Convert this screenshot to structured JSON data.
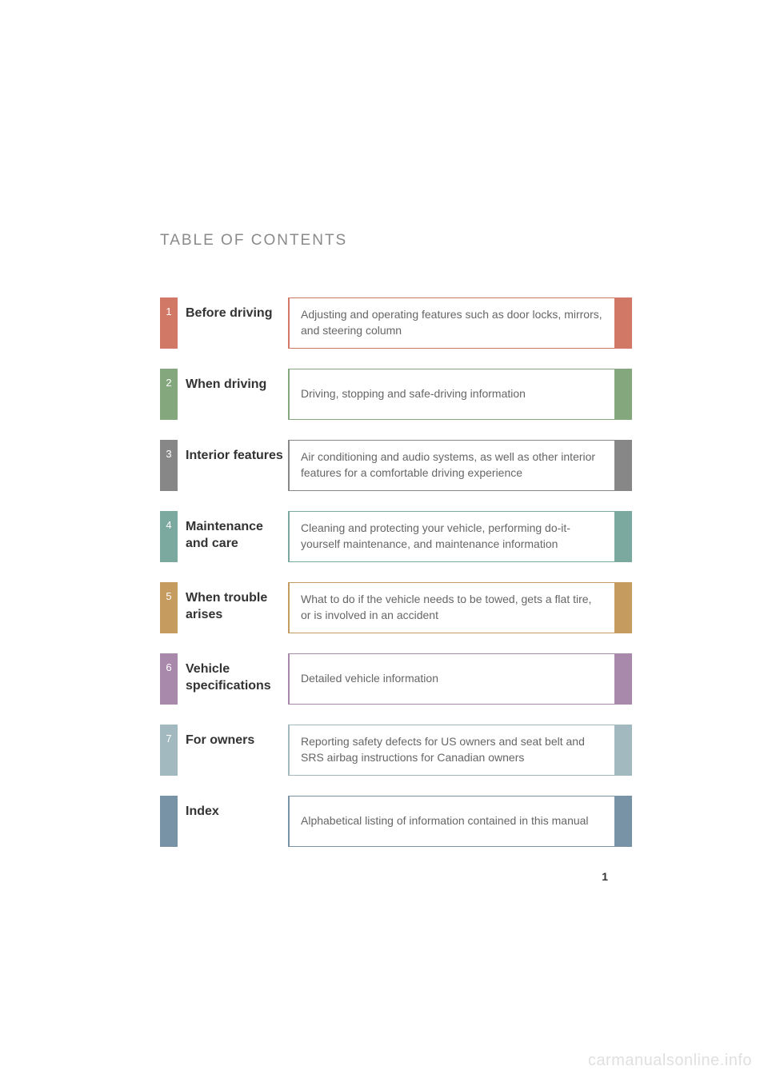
{
  "title": "TABLE OF CONTENTS",
  "page_number": "1",
  "watermark": "carmanualsonline.info",
  "colors": {
    "background": "#ffffff",
    "title_text": "#8a8a8a",
    "section_title_text": "#333333",
    "description_text": "#666666"
  },
  "sections": [
    {
      "number": "1",
      "title": "Before driving",
      "description": "Adjusting and operating features such as door locks, mirrors, and steering column",
      "color": "#d17867"
    },
    {
      "number": "2",
      "title": "When driving",
      "description": "Driving, stopping and safe-driving information",
      "color": "#85a77d"
    },
    {
      "number": "3",
      "title": "Interior features",
      "description": "Air conditioning and audio systems, as well as other interior features for a comfortable driving experience",
      "color": "#878787"
    },
    {
      "number": "4",
      "title": "Maintenance and care",
      "description": "Cleaning and protecting your vehicle, performing do-it-yourself maintenance, and maintenance information",
      "color": "#7ba99f"
    },
    {
      "number": "5",
      "title": "When trouble arises",
      "description": "What to do if the vehicle needs to be towed, gets a flat tire, or is involved in an accident",
      "color": "#c69b5f"
    },
    {
      "number": "6",
      "title": "Vehicle specifications",
      "description": "Detailed vehicle information",
      "color": "#a989ab"
    },
    {
      "number": "7",
      "title": "For owners",
      "description": "Reporting safety defects for US owners and seat belt and SRS airbag instructions for Canadian owners",
      "color": "#a3b9c0"
    },
    {
      "number": "",
      "title": "Index",
      "description": "Alphabetical listing of information contained in this manual",
      "color": "#7993a6"
    }
  ]
}
